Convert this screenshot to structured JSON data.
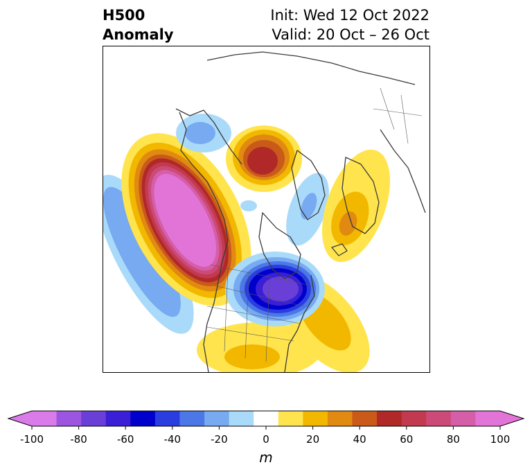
{
  "header": {
    "field_name": "H500",
    "field_type": "Anomaly",
    "init": "Init: Wed 12 Oct 2022",
    "valid": "Valid: 20 Oct – 26 Oct"
  },
  "map": {
    "projection": "north-polar-stereographic",
    "region": "North America and North Atlantic / Arctic",
    "features": [
      {
        "name": "gulf-of-alaska-ridge",
        "anomaly_m": 110
      },
      {
        "name": "arctic-ridge-near-greenland",
        "anomaly_m": 70
      },
      {
        "name": "great-lakes-trough",
        "anomaly_m": -95
      },
      {
        "name": "north-pacific-trough",
        "anomaly_m": -40
      },
      {
        "name": "scandinavia-ridge",
        "anomaly_m": 30
      },
      {
        "name": "north-atlantic-ridge",
        "anomaly_m": 30
      },
      {
        "name": "southern-us-ridge",
        "anomaly_m": 20
      }
    ]
  },
  "colorbar": {
    "unit": "m",
    "ticks": [
      "-100",
      "-80",
      "-60",
      "-40",
      "-20",
      "0",
      "20",
      "40",
      "60",
      "80",
      "100"
    ],
    "levels": [
      -100,
      -90,
      -80,
      -70,
      -60,
      -50,
      -40,
      -30,
      -20,
      -10,
      10,
      20,
      30,
      40,
      50,
      60,
      70,
      80,
      90,
      100
    ],
    "colors": [
      "#d97be8",
      "#9b55e0",
      "#6a3fd8",
      "#3b1fd6",
      "#0000cc",
      "#2a3ee0",
      "#4c77e6",
      "#77aaf0",
      "#aadafa",
      "#ffffff",
      "#ffe44d",
      "#f2b800",
      "#e08a12",
      "#c95a1a",
      "#b02828",
      "#c23a50",
      "#cc4a78",
      "#d45fa8",
      "#e274d8"
    ],
    "extend_low_color": "#d97be8",
    "extend_high_color": "#e274d8"
  }
}
